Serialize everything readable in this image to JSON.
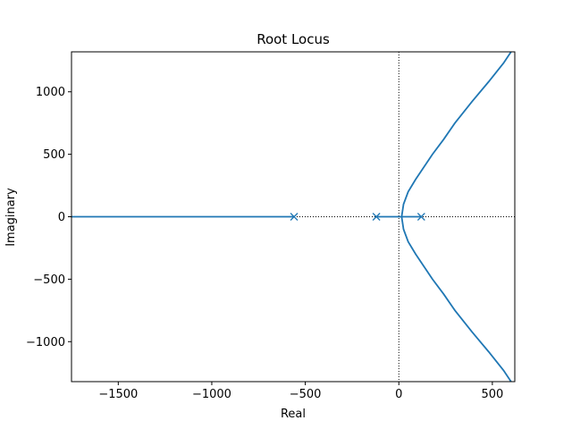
{
  "chart_data": {
    "type": "line",
    "title": "Root Locus",
    "xlabel": "Real",
    "ylabel": "Imaginary",
    "xlim": [
      -1750,
      620
    ],
    "ylim": [
      -1320,
      1320
    ],
    "xticks": [
      -1500,
      -1000,
      -500,
      0,
      500
    ],
    "yticks": [
      -1000,
      -500,
      0,
      500,
      1000
    ],
    "xtick_labels": [
      "−1500",
      "−1000",
      "−500",
      "0",
      "500"
    ],
    "ytick_labels": [
      "−1000",
      "−500",
      "0",
      "500",
      "1000"
    ],
    "grid": false,
    "reference_lines": "dotted lines at real = 0 and imaginary = 0",
    "line_color": "#1f77b4",
    "poles": [
      {
        "real": -560,
        "imag": 0
      },
      {
        "real": -120,
        "imag": 0
      },
      {
        "real": 120,
        "imag": 0
      }
    ],
    "series": [
      {
        "values_note": "branch from pole at -560 along the negative real axis",
        "points": [
          [
            -560,
            0
          ],
          [
            -1750,
            0
          ]
        ]
      },
      {
        "values_note": "branch from poles at -120 and 120 meeting on real axis then departing",
        "points": [
          [
            -120,
            0
          ],
          [
            0,
            0
          ],
          [
            120,
            0
          ]
        ]
      },
      {
        "values_note": "upper branch",
        "points": [
          [
            15,
            0
          ],
          [
            25,
            100
          ],
          [
            50,
            200
          ],
          [
            90,
            300
          ],
          [
            135,
            400
          ],
          [
            180,
            500
          ],
          [
            240,
            620
          ],
          [
            300,
            750
          ],
          [
            390,
            920
          ],
          [
            480,
            1080
          ],
          [
            560,
            1230
          ],
          [
            600,
            1320
          ]
        ]
      },
      {
        "values_note": "lower branch",
        "points": [
          [
            15,
            0
          ],
          [
            25,
            -100
          ],
          [
            50,
            -200
          ],
          [
            90,
            -300
          ],
          [
            135,
            -400
          ],
          [
            180,
            -500
          ],
          [
            240,
            -620
          ],
          [
            300,
            -750
          ],
          [
            390,
            -920
          ],
          [
            480,
            -1080
          ],
          [
            560,
            -1230
          ],
          [
            600,
            -1320
          ]
        ]
      }
    ]
  }
}
